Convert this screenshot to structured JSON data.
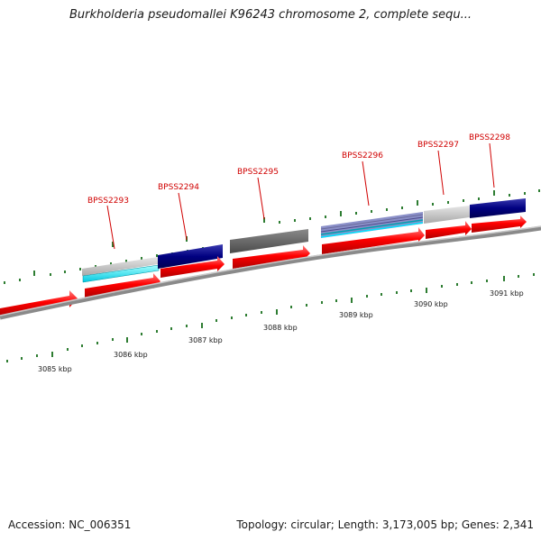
{
  "title": "Burkholderia pseudomallei K96243 chromosome 2, complete sequ...",
  "footer": {
    "accession": "Accession: NC_006351",
    "summary": "Topology: circular; Length: 3,173,005 bp; Genes: 2,341"
  },
  "gene_labels": [
    "BPSS2293",
    "BPSS2294",
    "BPSS2295",
    "BPSS2296",
    "BPSS2297",
    "BPSS2298"
  ],
  "kbp_labels": [
    "3085 kbp",
    "3086 kbp",
    "3087 kbp",
    "3088 kbp",
    "3089 kbp",
    "3090 kbp",
    "3091 kbp"
  ],
  "colors": {
    "gene_label": "#d00000",
    "cds_arrow": "#ff0000",
    "backbone": "#808080",
    "tick": "#2e7d32",
    "navy_feature": "#000080",
    "cyan_feature": "#00e5ff",
    "gray_feature": "#bdbdbd"
  }
}
